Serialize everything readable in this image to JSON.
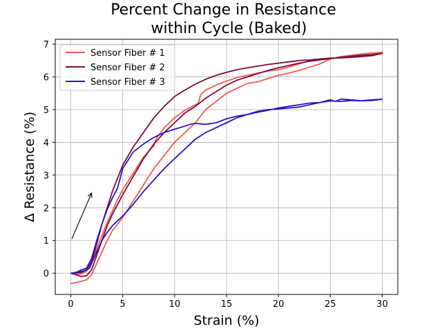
{
  "chart_data": {
    "type": "line",
    "title_lines": [
      "Percent Change in Resistance",
      "within Cycle (Baked)"
    ],
    "xlabel": "Strain (%)",
    "ylabel": "Δ Resistance (%)",
    "xlim": [
      -1.5,
      31.5
    ],
    "ylim": [
      -0.65,
      7.15
    ],
    "xticks": [
      0,
      5,
      10,
      15,
      20,
      25,
      30
    ],
    "yticks": [
      0,
      1,
      2,
      3,
      4,
      5,
      6,
      7
    ],
    "grid": true,
    "legend_position": "top-left",
    "annotation": {
      "type": "arrow",
      "from": [
        0.1,
        1.05
      ],
      "to": [
        2.0,
        2.45
      ]
    },
    "series": [
      {
        "name": "Sensor Fiber # 1",
        "color": "#f4584c",
        "x": [
          0,
          1,
          1.5,
          2,
          2.5,
          3,
          3.5,
          4,
          4.5,
          5,
          6,
          7,
          8,
          9,
          10,
          11,
          12,
          13,
          14,
          15,
          16,
          17,
          18,
          19,
          20,
          21,
          22,
          23,
          24,
          25,
          26,
          27,
          28,
          29,
          30,
          29,
          28,
          27,
          26,
          25,
          24,
          23,
          22,
          21,
          20,
          19,
          18,
          17,
          16,
          15,
          14,
          13,
          12.5,
          12.3,
          12,
          11,
          10,
          9,
          8.2,
          8,
          7,
          6,
          5,
          4.5,
          4,
          3.5,
          3,
          2.5,
          2,
          1.8,
          1.5,
          1,
          0.5,
          0
        ],
        "y": [
          -0.32,
          -0.25,
          -0.2,
          -0.05,
          0.3,
          0.65,
          1.0,
          1.3,
          1.5,
          1.7,
          2.2,
          2.7,
          3.2,
          3.6,
          4.0,
          4.3,
          4.6,
          5.0,
          5.25,
          5.5,
          5.65,
          5.8,
          5.85,
          5.95,
          6.05,
          6.12,
          6.2,
          6.3,
          6.4,
          6.55,
          6.62,
          6.66,
          6.7,
          6.73,
          6.75,
          6.72,
          6.7,
          6.65,
          6.6,
          6.58,
          6.55,
          6.5,
          6.4,
          6.3,
          6.22,
          6.18,
          6.12,
          6.05,
          5.98,
          5.87,
          5.75,
          5.6,
          5.45,
          5.2,
          5.15,
          4.98,
          4.75,
          4.45,
          4.1,
          3.9,
          3.55,
          3.05,
          2.55,
          2.25,
          1.9,
          1.55,
          1.15,
          0.75,
          0.35,
          0.2,
          0.05,
          -0.02,
          -0.02,
          0
        ]
      },
      {
        "name": "Sensor Fiber # 2",
        "color": "#7b0a3c",
        "x": [
          0,
          0.5,
          1,
          1.5,
          2,
          2.5,
          3,
          3.5,
          4,
          5,
          6,
          7,
          8,
          9,
          10,
          11,
          12,
          13,
          14,
          15,
          16,
          17,
          18,
          19,
          20,
          21,
          22,
          23,
          24,
          25,
          26,
          27,
          28,
          29,
          30,
          29,
          28,
          27,
          26,
          25,
          24,
          23,
          22,
          21,
          20,
          19,
          18,
          17,
          16,
          15,
          14,
          13,
          12,
          11,
          10,
          9,
          8,
          7,
          6,
          5,
          4.5,
          4,
          3.5,
          3,
          2.5,
          2,
          1.5,
          1,
          0
        ],
        "y": [
          0,
          -0.05,
          -0.1,
          -0.08,
          0.1,
          0.55,
          1.0,
          1.45,
          1.8,
          2.4,
          2.95,
          3.5,
          3.95,
          4.3,
          4.6,
          4.9,
          5.1,
          5.35,
          5.55,
          5.75,
          5.9,
          6.0,
          6.1,
          6.2,
          6.28,
          6.35,
          6.42,
          6.48,
          6.52,
          6.56,
          6.6,
          6.63,
          6.66,
          6.68,
          6.72,
          6.65,
          6.62,
          6.6,
          6.58,
          6.57,
          6.55,
          6.52,
          6.5,
          6.46,
          6.42,
          6.38,
          6.33,
          6.28,
          6.22,
          6.14,
          6.05,
          5.93,
          5.78,
          5.6,
          5.4,
          5.1,
          4.75,
          4.3,
          3.85,
          3.3,
          2.9,
          2.5,
          2.0,
          1.5,
          0.9,
          0.35,
          0.1,
          0.02,
          0
        ]
      },
      {
        "name": "Sensor Fiber # 3",
        "color": "#2b0fc7",
        "x": [
          0,
          1,
          1.5,
          1.8,
          2,
          2.5,
          3,
          3.5,
          4,
          5,
          6,
          7,
          8,
          9,
          10,
          11,
          12,
          13,
          14,
          15,
          16,
          17,
          18,
          19,
          20,
          21,
          22,
          23,
          24,
          25,
          25.5,
          26,
          27,
          28,
          29,
          30,
          29,
          28,
          27,
          26,
          25,
          24,
          23,
          22,
          21,
          20,
          19,
          18,
          17,
          16,
          15,
          14,
          13,
          12,
          11.5,
          11,
          10.5,
          10,
          9,
          8,
          7,
          6,
          5,
          4.5,
          4,
          3.5,
          3,
          2.5,
          2,
          1.5,
          1,
          0.5,
          0
        ],
        "y": [
          0,
          0.05,
          0.1,
          0.15,
          0.3,
          0.65,
          1.0,
          1.25,
          1.45,
          1.75,
          2.1,
          2.5,
          2.85,
          3.2,
          3.5,
          3.8,
          4.1,
          4.3,
          4.45,
          4.6,
          4.75,
          4.85,
          4.95,
          5.0,
          5.02,
          5.05,
          5.08,
          5.15,
          5.22,
          5.3,
          5.25,
          5.32,
          5.3,
          5.27,
          5.3,
          5.32,
          5.28,
          5.27,
          5.28,
          5.25,
          5.27,
          5.22,
          5.2,
          5.15,
          5.1,
          5.05,
          4.98,
          4.92,
          4.85,
          4.8,
          4.72,
          4.6,
          4.55,
          4.58,
          4.55,
          4.5,
          4.45,
          4.4,
          4.3,
          4.15,
          3.95,
          3.7,
          3.2,
          2.6,
          2.3,
          1.95,
          1.5,
          1.0,
          0.45,
          0.15,
          0.1,
          0.02,
          0
        ]
      }
    ]
  }
}
